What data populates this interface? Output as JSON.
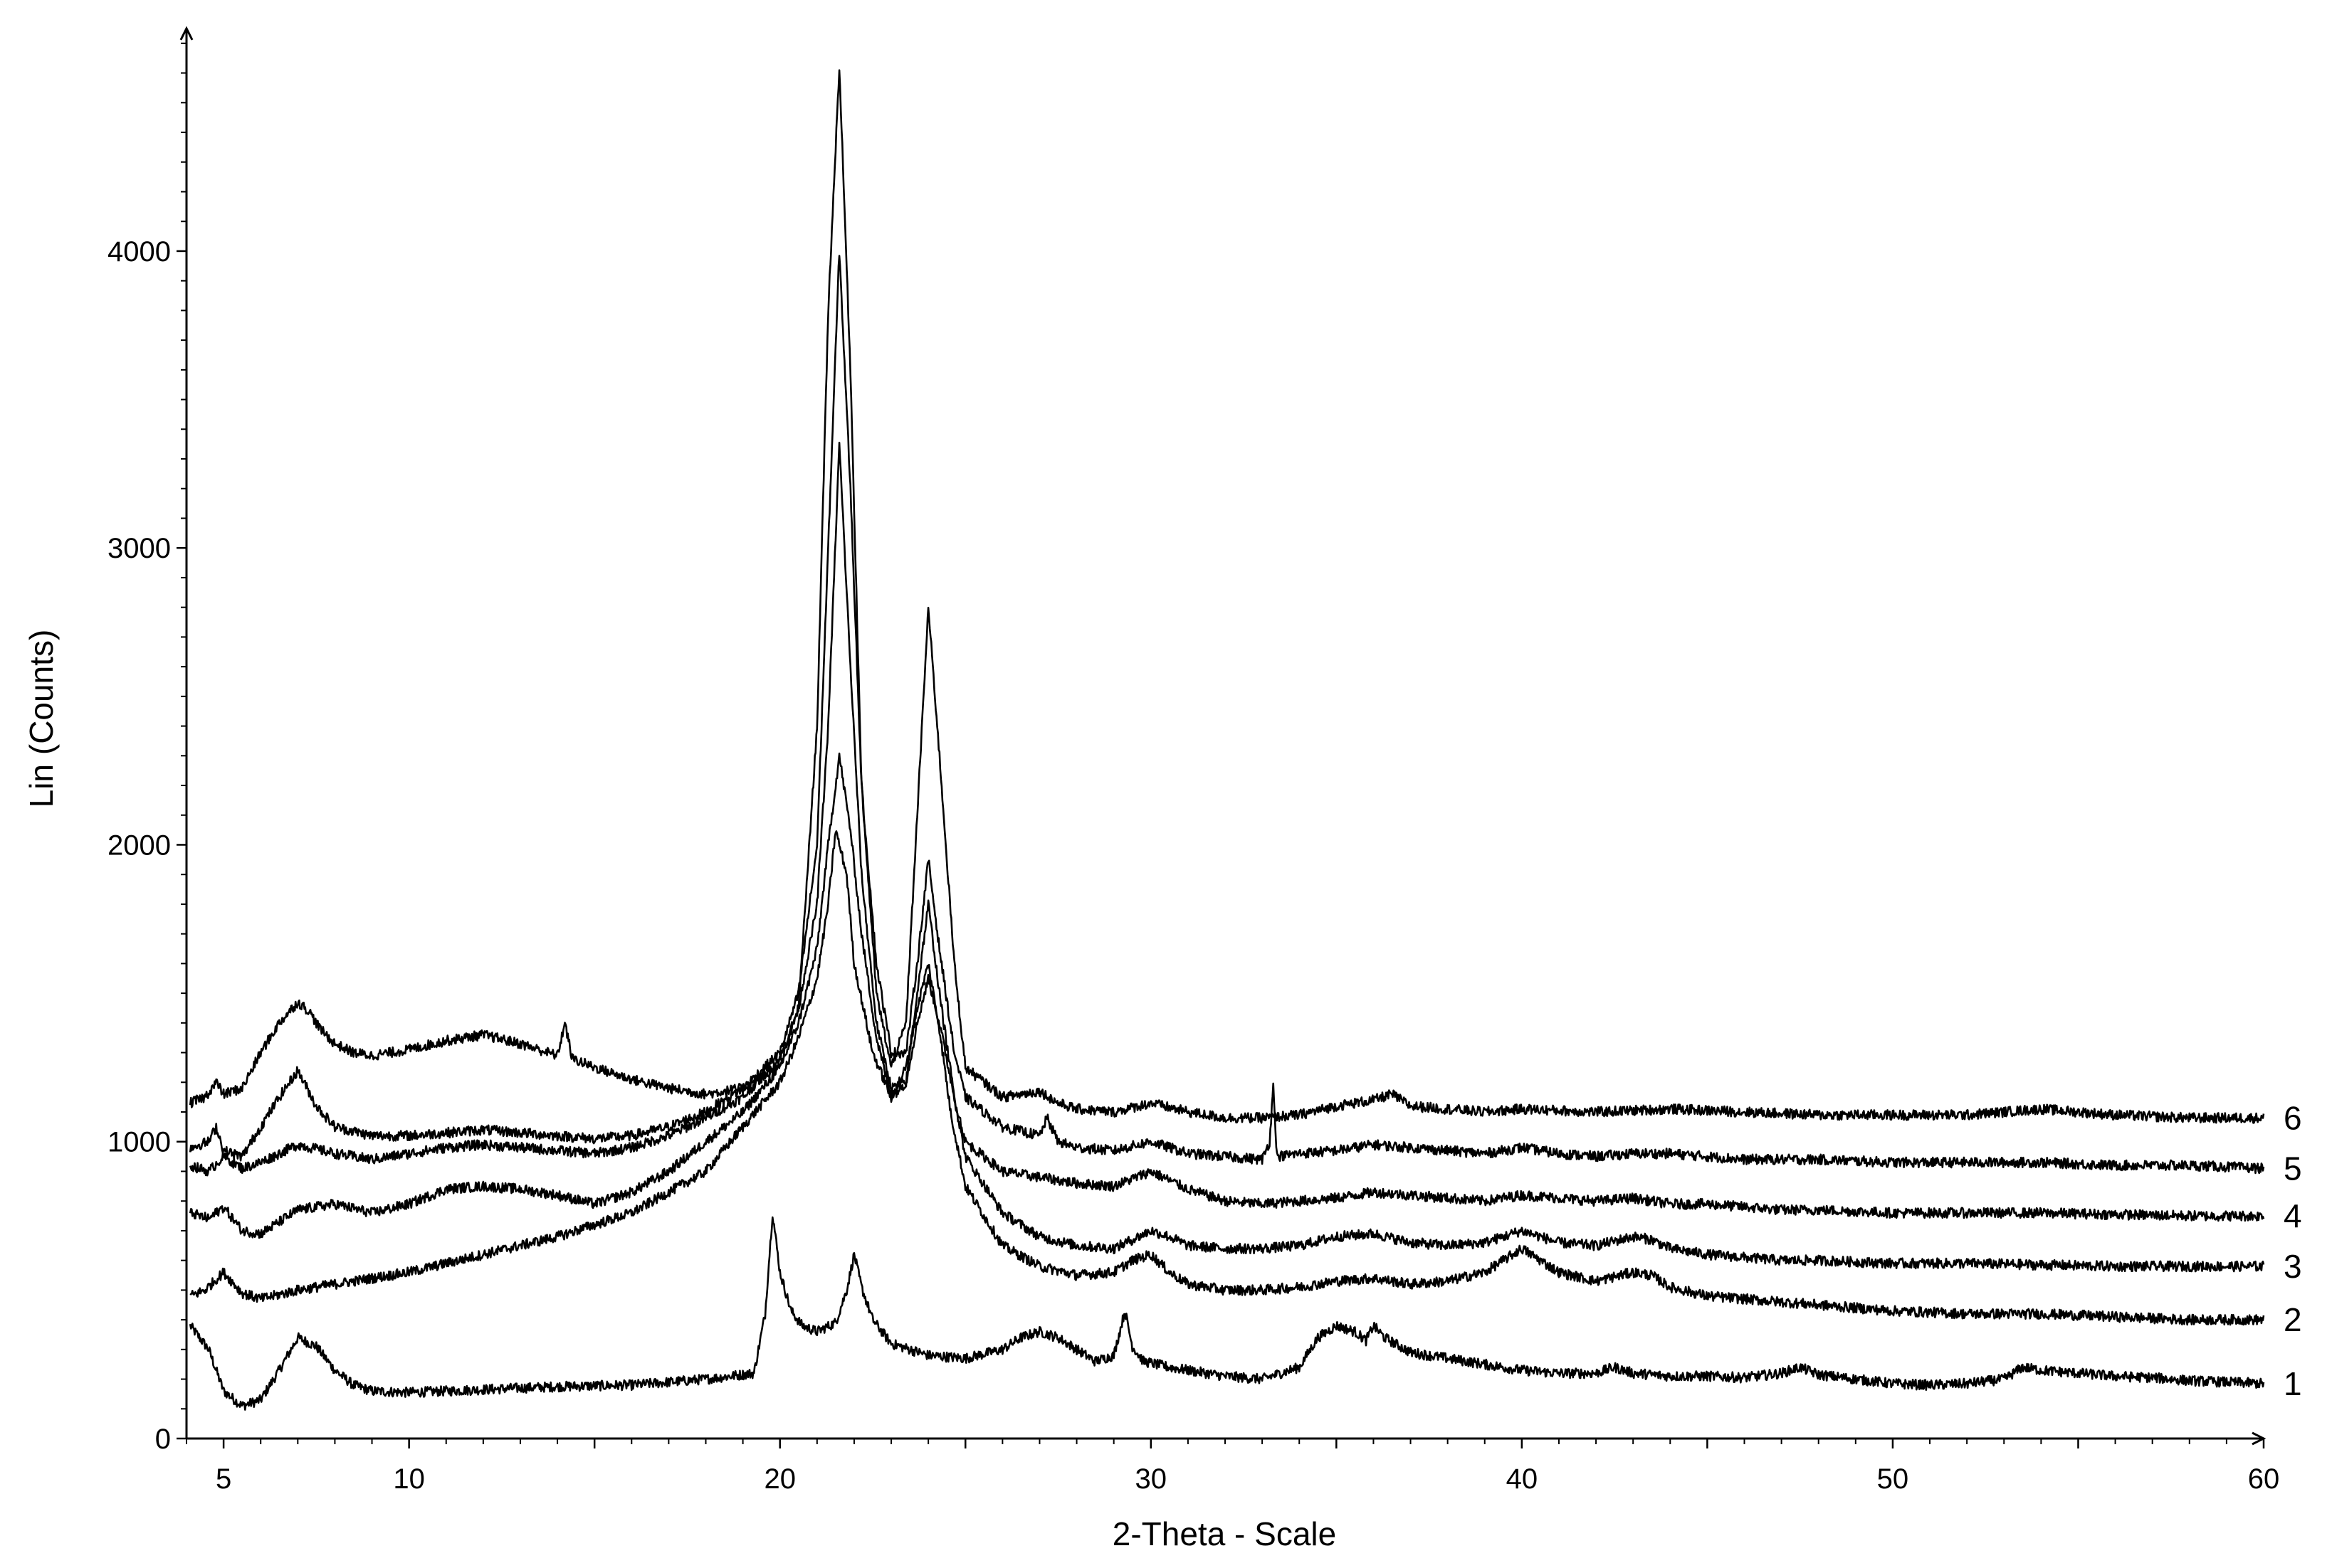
{
  "chart_data": {
    "type": "line",
    "title": "",
    "xlabel": "2-Theta - Scale",
    "ylabel": "Lin (Counts)",
    "xlim": [
      4,
      60
    ],
    "ylim": [
      0,
      4750
    ],
    "x_ticks": [
      5,
      10,
      20,
      30,
      40,
      50,
      60
    ],
    "x_tick_labels": [
      "5",
      "10",
      "20",
      "30",
      "40",
      "50",
      "60"
    ],
    "y_ticks": [
      0,
      1000,
      2000,
      3000,
      4000
    ],
    "y_tick_labels": [
      "0",
      "1000",
      "2000",
      "3000",
      "4000"
    ],
    "grid": false,
    "legend": "none",
    "series": [
      {
        "label": "1",
        "x": [
          4.1,
          4.6,
          5.0,
          5.5,
          6.0,
          6.5,
          7.0,
          7.5,
          8.0,
          8.5,
          9.0,
          10.0,
          12.0,
          14.0,
          16.0,
          18.0,
          19.3,
          19.6,
          19.8,
          20.0,
          20.3,
          20.6,
          21.0,
          21.5,
          21.8,
          22.0,
          22.2,
          22.5,
          23.0,
          24.0,
          25.0,
          26.0,
          26.5,
          27.0,
          27.5,
          28.0,
          28.5,
          29.0,
          29.3,
          29.5,
          29.8,
          30.5,
          31.0,
          32.0,
          33.0,
          34.0,
          34.5,
          35.0,
          35.5,
          35.8,
          36.0,
          36.3,
          37.0,
          38.0,
          39.0,
          40.0,
          41.0,
          42.0,
          42.5,
          43.0,
          44.0,
          45.0,
          46.0,
          47.0,
          47.5,
          48.0,
          49.0,
          50.0,
          51.0,
          52.0,
          53.0,
          53.5,
          54.0,
          55.0,
          56.0,
          57.0,
          58.0,
          59.0,
          60.0
        ],
        "y": [
          380,
          300,
          160,
          110,
          130,
          230,
          340,
          310,
          230,
          180,
          160,
          155,
          165,
          175,
          180,
          200,
          220,
          420,
          760,
          560,
          430,
          380,
          360,
          390,
          500,
          620,
          510,
          400,
          320,
          280,
          270,
          300,
          340,
          360,
          340,
          300,
          260,
          280,
          430,
          310,
          260,
          240,
          230,
          210,
          200,
          240,
          340,
          380,
          360,
          330,
          380,
          340,
          290,
          270,
          250,
          230,
          220,
          220,
          240,
          220,
          210,
          210,
          205,
          220,
          240,
          215,
          200,
          185,
          180,
          185,
          200,
          240,
          230,
          220,
          210,
          205,
          195,
          190,
          185
        ]
      },
      {
        "label": "2",
        "x": [
          4.1,
          4.5,
          5.0,
          5.5,
          6.0,
          7.0,
          8.0,
          10.0,
          12.0,
          14.0,
          16.0,
          18.0,
          19.0,
          20.0,
          20.5,
          21.0,
          21.3,
          21.5,
          21.8,
          22.0,
          22.5,
          23.0,
          23.4,
          23.7,
          24.0,
          24.3,
          24.6,
          25.0,
          26.0,
          27.0,
          28.0,
          29.0,
          29.5,
          30.0,
          30.5,
          31.0,
          32.0,
          33.0,
          34.0,
          35.0,
          36.0,
          37.0,
          38.0,
          39.0,
          40.0,
          40.5,
          41.0,
          42.0,
          43.0,
          43.5,
          44.0,
          45.0,
          46.0,
          47.0,
          48.0,
          50.0,
          52.0,
          54.0,
          56.0,
          58.0,
          60.0
        ],
        "y": [
          480,
          500,
          560,
          490,
          470,
          500,
          520,
          560,
          620,
          680,
          760,
          900,
          1050,
          1200,
          1350,
          1550,
          1800,
          2050,
          1900,
          1600,
          1300,
          1150,
          1250,
          1450,
          1600,
          1380,
          1100,
          850,
          650,
          580,
          550,
          560,
          600,
          620,
          560,
          520,
          500,
          500,
          510,
          530,
          540,
          520,
          530,
          560,
          640,
          600,
          560,
          530,
          560,
          550,
          510,
          480,
          470,
          460,
          450,
          430,
          420,
          420,
          410,
          400,
          400
        ]
      },
      {
        "label": "3",
        "x": [
          4.1,
          4.6,
          5.0,
          5.5,
          6.0,
          7.0,
          8.0,
          9.0,
          10.0,
          11.0,
          12.0,
          13.0,
          14.0,
          15.0,
          16.0,
          17.0,
          18.0,
          19.0,
          20.0,
          20.5,
          21.0,
          21.3,
          21.6,
          21.9,
          22.2,
          22.6,
          23.0,
          23.4,
          23.7,
          24.0,
          24.3,
          24.7,
          25.0,
          26.0,
          27.0,
          28.0,
          29.0,
          30.0,
          30.5,
          31.0,
          32.0,
          33.0,
          34.0,
          35.0,
          36.0,
          37.0,
          38.0,
          39.0,
          40.0,
          40.5,
          41.0,
          42.0,
          43.0,
          43.5,
          44.0,
          45.0,
          46.0,
          47.0,
          48.0,
          50.0,
          52.0,
          54.0,
          56.0,
          58.0,
          60.0
        ],
        "y": [
          760,
          740,
          780,
          700,
          690,
          770,
          790,
          760,
          790,
          840,
          850,
          840,
          820,
          790,
          830,
          900,
          1000,
          1100,
          1250,
          1400,
          1650,
          2000,
          2300,
          2050,
          1700,
          1350,
          1150,
          1200,
          1400,
          1550,
          1400,
          1150,
          950,
          760,
          680,
          650,
          640,
          700,
          680,
          650,
          640,
          640,
          650,
          680,
          690,
          660,
          650,
          660,
          700,
          680,
          660,
          650,
          680,
          670,
          640,
          620,
          610,
          600,
          600,
          590,
          590,
          585,
          580,
          580,
          580
        ]
      },
      {
        "label": "4",
        "x": [
          4.1,
          4.6,
          5.0,
          5.5,
          6.0,
          7.0,
          8.0,
          9.0,
          10.0,
          11.0,
          12.0,
          13.0,
          14.0,
          15.0,
          16.0,
          17.0,
          18.0,
          19.0,
          20.0,
          20.5,
          21.0,
          21.3,
          21.6,
          21.9,
          22.2,
          22.6,
          23.0,
          23.4,
          23.7,
          24.0,
          24.3,
          24.7,
          25.0,
          26.0,
          27.0,
          28.0,
          29.0,
          30.0,
          31.0,
          32.0,
          33.0,
          34.0,
          35.0,
          36.0,
          37.0,
          38.0,
          39.0,
          40.0,
          41.0,
          42.0,
          43.0,
          43.5,
          44.0,
          45.0,
          46.0,
          47.0,
          48.0,
          50.0,
          52.0,
          54.0,
          56.0,
          58.0,
          60.0
        ],
        "y": [
          920,
          900,
          950,
          910,
          930,
          990,
          960,
          940,
          960,
          980,
          990,
          980,
          970,
          960,
          980,
          1020,
          1080,
          1150,
          1280,
          1450,
          1800,
          2400,
          3350,
          2600,
          1900,
          1400,
          1180,
          1200,
          1500,
          1800,
          1500,
          1150,
          1000,
          900,
          880,
          860,
          850,
          900,
          840,
          800,
          790,
          800,
          810,
          830,
          820,
          810,
          800,
          820,
          810,
          800,
          810,
          800,
          790,
          790,
          780,
          770,
          770,
          760,
          760,
          760,
          755,
          750,
          750
        ]
      },
      {
        "label": "5",
        "x": [
          4.1,
          4.6,
          4.8,
          5.0,
          5.5,
          6.0,
          6.5,
          7.0,
          7.5,
          8.0,
          9.0,
          10.0,
          11.0,
          12.0,
          13.0,
          14.0,
          15.0,
          16.0,
          17.0,
          18.0,
          19.0,
          20.0,
          20.5,
          21.0,
          21.3,
          21.6,
          21.9,
          22.2,
          22.6,
          23.0,
          23.4,
          23.7,
          24.0,
          24.3,
          24.7,
          25.0,
          26.0,
          27.0,
          27.2,
          27.5,
          28.0,
          29.0,
          30.0,
          31.0,
          32.0,
          33.0,
          33.2,
          33.3,
          33.4,
          34.0,
          35.0,
          36.0,
          37.0,
          38.0,
          39.0,
          40.0,
          41.0,
          42.0,
          43.0,
          44.0,
          45.0,
          46.0,
          48.0,
          50.0,
          52.0,
          54.0,
          56.0,
          58.0,
          60.0
        ],
        "y": [
          980,
          1000,
          1050,
          970,
          950,
          1050,
          1150,
          1240,
          1120,
          1050,
          1020,
          1020,
          1030,
          1040,
          1030,
          1020,
          1010,
          1020,
          1050,
          1100,
          1180,
          1300,
          1500,
          2000,
          3000,
          4000,
          3200,
          2200,
          1600,
          1300,
          1300,
          1600,
          1950,
          1650,
          1300,
          1150,
          1050,
          1020,
          1080,
          1000,
          980,
          970,
          1000,
          960,
          950,
          940,
          1000,
          1190,
          950,
          960,
          970,
          990,
          980,
          970,
          960,
          980,
          960,
          950,
          960,
          960,
          950,
          940,
          940,
          930,
          930,
          930,
          920,
          920,
          910
        ]
      },
      {
        "label": "6",
        "x": [
          4.1,
          4.5,
          4.8,
          5.0,
          5.5,
          6.0,
          6.5,
          7.0,
          7.3,
          7.6,
          8.0,
          8.5,
          9.0,
          10.0,
          11.0,
          12.0,
          13.0,
          14.0,
          14.2,
          14.4,
          15.0,
          16.0,
          17.0,
          18.0,
          19.0,
          20.0,
          20.5,
          21.0,
          21.3,
          21.6,
          21.9,
          22.2,
          22.6,
          23.0,
          23.4,
          23.7,
          24.0,
          24.3,
          24.7,
          25.0,
          26.0,
          27.0,
          27.5,
          28.0,
          29.0,
          30.0,
          31.0,
          32.0,
          33.0,
          34.0,
          35.0,
          36.0,
          36.5,
          37.0,
          38.0,
          39.0,
          40.0,
          42.0,
          44.0,
          46.0,
          48.0,
          50.0,
          52.0,
          54.0,
          56.0,
          58.0,
          60.0
        ],
        "y": [
          1130,
          1150,
          1200,
          1160,
          1180,
          1300,
          1400,
          1470,
          1440,
          1380,
          1330,
          1300,
          1290,
          1310,
          1340,
          1360,
          1330,
          1290,
          1400,
          1280,
          1250,
          1210,
          1180,
          1160,
          1180,
          1250,
          1450,
          2400,
          3800,
          4620,
          3600,
          2200,
          1500,
          1250,
          1400,
          2100,
          2800,
          2300,
          1600,
          1250,
          1150,
          1170,
          1130,
          1110,
          1100,
          1130,
          1100,
          1080,
          1080,
          1090,
          1120,
          1140,
          1160,
          1120,
          1110,
          1100,
          1110,
          1100,
          1110,
          1100,
          1090,
          1090,
          1090,
          1110,
          1090,
          1080,
          1080
        ]
      }
    ]
  }
}
